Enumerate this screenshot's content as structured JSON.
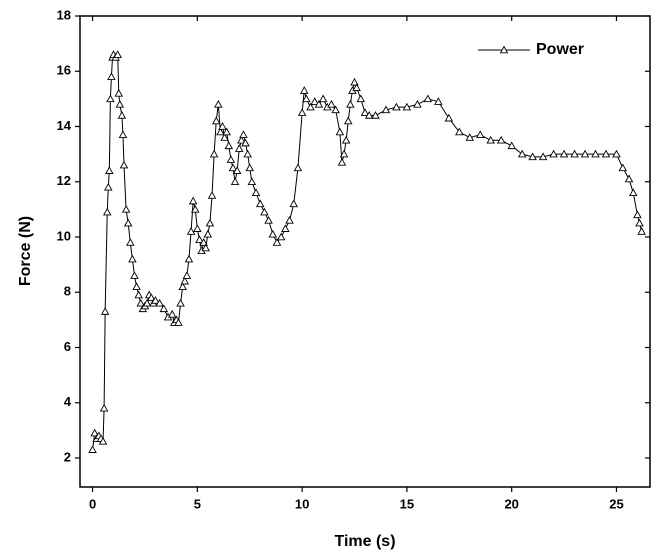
{
  "chart_data": {
    "type": "line",
    "x_label": "Time (s)",
    "y_label": "Force (N)",
    "x": [
      0.0,
      0.1,
      0.2,
      0.3,
      0.4,
      0.5,
      0.55,
      0.6,
      0.7,
      0.75,
      0.8,
      0.85,
      0.9,
      0.95,
      1.0,
      1.1,
      1.2,
      1.25,
      1.3,
      1.4,
      1.45,
      1.5,
      1.6,
      1.7,
      1.8,
      1.9,
      2.0,
      2.1,
      2.2,
      2.3,
      2.4,
      2.5,
      2.6,
      2.7,
      2.8,
      2.9,
      3.0,
      3.2,
      3.4,
      3.6,
      3.8,
      3.9,
      4.0,
      4.1,
      4.2,
      4.3,
      4.4,
      4.5,
      4.6,
      4.7,
      4.8,
      4.9,
      5.0,
      5.1,
      5.2,
      5.3,
      5.4,
      5.5,
      5.6,
      5.7,
      5.8,
      5.9,
      6.0,
      6.1,
      6.2,
      6.3,
      6.4,
      6.5,
      6.6,
      6.7,
      6.8,
      6.9,
      7.0,
      7.1,
      7.2,
      7.3,
      7.4,
      7.5,
      7.6,
      7.8,
      8.0,
      8.2,
      8.4,
      8.6,
      8.8,
      9.0,
      9.2,
      9.4,
      9.6,
      9.8,
      10.0,
      10.1,
      10.2,
      10.4,
      10.6,
      10.8,
      11.0,
      11.2,
      11.4,
      11.6,
      11.8,
      11.9,
      12.0,
      12.1,
      12.2,
      12.3,
      12.4,
      12.5,
      12.6,
      12.8,
      13.0,
      13.2,
      13.5,
      14.0,
      14.5,
      15.0,
      15.5,
      16.0,
      16.5,
      17.0,
      17.5,
      18.0,
      18.5,
      19.0,
      19.5,
      20.0,
      20.5,
      21.0,
      21.5,
      22.0,
      22.5,
      23.0,
      23.5,
      24.0,
      24.5,
      25.0,
      25.3,
      25.6,
      25.8,
      26.0,
      26.1,
      26.2
    ],
    "series": [
      {
        "name": "Power",
        "color": "#000000",
        "values": [
          2.3,
          2.9,
          2.7,
          2.8,
          2.7,
          2.6,
          3.8,
          7.3,
          10.9,
          11.8,
          12.4,
          15.0,
          15.8,
          16.5,
          16.6,
          16.5,
          16.6,
          15.2,
          14.8,
          14.4,
          13.7,
          12.6,
          11.0,
          10.5,
          9.8,
          9.2,
          8.6,
          8.2,
          7.9,
          7.6,
          7.4,
          7.5,
          7.6,
          7.9,
          7.8,
          7.6,
          7.7,
          7.6,
          7.4,
          7.1,
          7.2,
          6.9,
          7.0,
          6.9,
          7.6,
          8.2,
          8.4,
          8.6,
          9.2,
          10.2,
          11.3,
          11.0,
          10.3,
          9.9,
          9.5,
          9.8,
          9.6,
          10.1,
          10.5,
          11.5,
          13.0,
          14.2,
          14.8,
          13.8,
          14.0,
          13.6,
          13.8,
          13.3,
          12.8,
          12.5,
          12.0,
          12.4,
          13.2,
          13.5,
          13.7,
          13.4,
          13.0,
          12.5,
          12.0,
          11.6,
          11.2,
          10.9,
          10.6,
          10.1,
          9.8,
          10.0,
          10.3,
          10.6,
          11.2,
          12.5,
          14.5,
          15.3,
          15.0,
          14.7,
          14.9,
          14.8,
          15.0,
          14.7,
          14.8,
          14.6,
          13.8,
          12.7,
          13.0,
          13.5,
          14.2,
          14.8,
          15.3,
          15.6,
          15.4,
          15.0,
          14.5,
          14.4,
          14.4,
          14.6,
          14.7,
          14.7,
          14.8,
          15.0,
          14.9,
          14.3,
          13.8,
          13.6,
          13.7,
          13.5,
          13.5,
          13.3,
          13.0,
          12.9,
          12.9,
          13.0,
          13.0,
          13.0,
          13.0,
          13.0,
          13.0,
          13.0,
          12.5,
          12.1,
          11.6,
          10.8,
          10.5,
          10.2
        ]
      }
    ],
    "xlim": [
      -0.6,
      26.6
    ],
    "ylim": [
      0.95,
      18
    ],
    "xticks": [
      0,
      5,
      10,
      15,
      20,
      25
    ],
    "yticks": [
      2,
      4,
      6,
      8,
      10,
      12,
      14,
      16,
      18
    ],
    "legend": "top-right",
    "marker": "triangle"
  }
}
